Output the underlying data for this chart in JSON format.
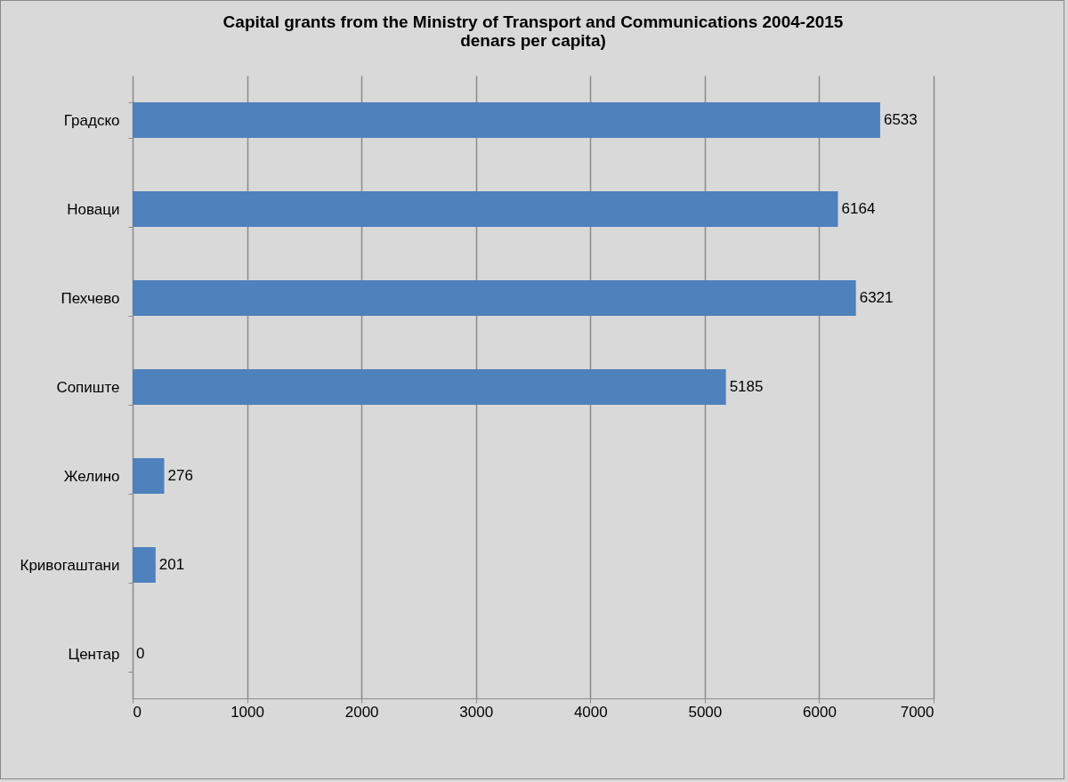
{
  "chart_data": {
    "type": "bar",
    "orientation": "horizontal",
    "title": "Capital grants from the Ministry of Transport and Communications 2004-2015\ndenars per capita)",
    "categories": [
      "Градско",
      "Новаци",
      "Пехчево",
      "Сопиште",
      "Желино",
      "Кривогаштани",
      "Центар"
    ],
    "values": [
      6533,
      6164,
      6321,
      5185,
      276,
      201,
      0
    ],
    "color": "#4f81bd",
    "xlim": [
      0,
      7000
    ],
    "xticks": [
      0,
      1000,
      2000,
      3000,
      4000,
      5000,
      6000,
      7000
    ],
    "grid": "x",
    "data_labels": true
  }
}
